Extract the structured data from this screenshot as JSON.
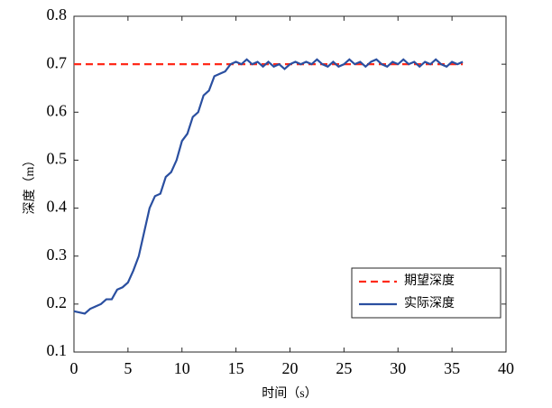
{
  "chart_data": {
    "type": "line",
    "xlabel": "时间（s）",
    "ylabel": "深度（m）",
    "xlim": [
      0,
      40
    ],
    "xticks": [
      0,
      5,
      10,
      15,
      20,
      25,
      30,
      35,
      40
    ],
    "ylim": [
      0.1,
      0.8
    ],
    "yticks": [
      0.1,
      0.2,
      0.3,
      0.4,
      0.5,
      0.6,
      0.7,
      0.8
    ],
    "legend": "lower right",
    "grid": false,
    "series": [
      {
        "name": "期望深度",
        "color": "#ff2a1a",
        "dash": true,
        "x": [
          0,
          36
        ],
        "values": [
          0.7,
          0.7
        ]
      },
      {
        "name": "实际深度",
        "color": "#2a4fa0",
        "dash": false,
        "x": [
          0,
          1,
          1.5,
          2,
          2.5,
          3,
          3.5,
          4,
          4.5,
          5,
          5.5,
          6,
          6.5,
          7,
          7.5,
          8,
          8.5,
          9,
          9.5,
          10,
          10.5,
          11,
          11.5,
          12,
          12.5,
          13,
          13.5,
          14,
          14.5,
          15,
          15.5,
          16,
          16.5,
          17,
          17.5,
          18,
          18.5,
          19,
          19.5,
          20,
          20.5,
          21,
          21.5,
          22,
          22.5,
          23,
          23.5,
          24,
          24.5,
          25,
          25.5,
          26,
          26.5,
          27,
          27.5,
          28,
          28.5,
          29,
          29.5,
          30,
          30.5,
          31,
          31.5,
          32,
          32.5,
          33,
          33.5,
          34,
          34.5,
          35,
          35.5,
          36
        ],
        "values": [
          0.185,
          0.18,
          0.19,
          0.195,
          0.2,
          0.21,
          0.21,
          0.23,
          0.235,
          0.245,
          0.27,
          0.3,
          0.35,
          0.4,
          0.425,
          0.43,
          0.465,
          0.475,
          0.5,
          0.54,
          0.555,
          0.59,
          0.6,
          0.635,
          0.645,
          0.675,
          0.68,
          0.685,
          0.7,
          0.705,
          0.7,
          0.71,
          0.7,
          0.705,
          0.695,
          0.705,
          0.695,
          0.7,
          0.69,
          0.7,
          0.705,
          0.7,
          0.705,
          0.7,
          0.71,
          0.7,
          0.695,
          0.705,
          0.695,
          0.7,
          0.71,
          0.7,
          0.705,
          0.695,
          0.705,
          0.71,
          0.7,
          0.695,
          0.705,
          0.7,
          0.71,
          0.7,
          0.705,
          0.695,
          0.705,
          0.7,
          0.71,
          0.7,
          0.695,
          0.705,
          0.7,
          0.705
        ]
      }
    ]
  }
}
